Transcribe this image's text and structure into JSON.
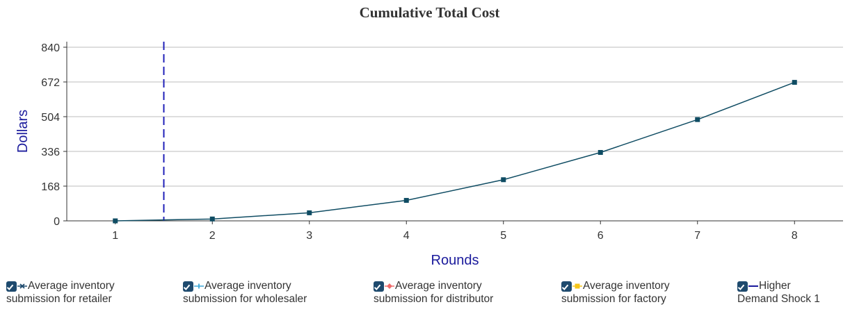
{
  "chart_data": {
    "type": "line",
    "title": "Cumulative Total Cost",
    "xlabel": "Rounds",
    "ylabel": "Dollars",
    "x": [
      1,
      2,
      3,
      4,
      5,
      6,
      7,
      8
    ],
    "ylim": [
      0,
      840
    ],
    "yticks": [
      0,
      168,
      336,
      504,
      672,
      840
    ],
    "xticks": [
      1,
      2,
      3,
      4,
      5,
      6,
      7,
      8
    ],
    "grid": "horizontal",
    "series": [
      {
        "values": [
          0,
          9,
          39,
          99,
          199,
          331,
          490,
          670
        ],
        "color": "#0f4c63",
        "marker": "square"
      }
    ],
    "vertical_lines": [
      {
        "x": 1.5,
        "color": "#2020b8",
        "style": "dashed"
      }
    ],
    "legend": {
      "placement": "bottom",
      "items": [
        {
          "line1": "Average inventory",
          "line2": "submission for retailer",
          "marker": "x",
          "color": "#1e4a6e",
          "checked": true
        },
        {
          "line1": "Average inventory",
          "line2": "submission for wholesaler",
          "marker": "plus",
          "color": "#3aa6d6",
          "checked": true
        },
        {
          "line1": "Average inventory",
          "line2": "submission for distributor",
          "marker": "diamond",
          "color": "#f06c6c",
          "checked": true
        },
        {
          "line1": "Average inventory",
          "line2": "submission for factory",
          "marker": "square",
          "color": "#f5c518",
          "checked": true
        },
        {
          "line1": "Higher",
          "line2": "Demand Shock 1",
          "marker": "line",
          "color": "#1a1a9c",
          "checked": true
        }
      ]
    }
  }
}
